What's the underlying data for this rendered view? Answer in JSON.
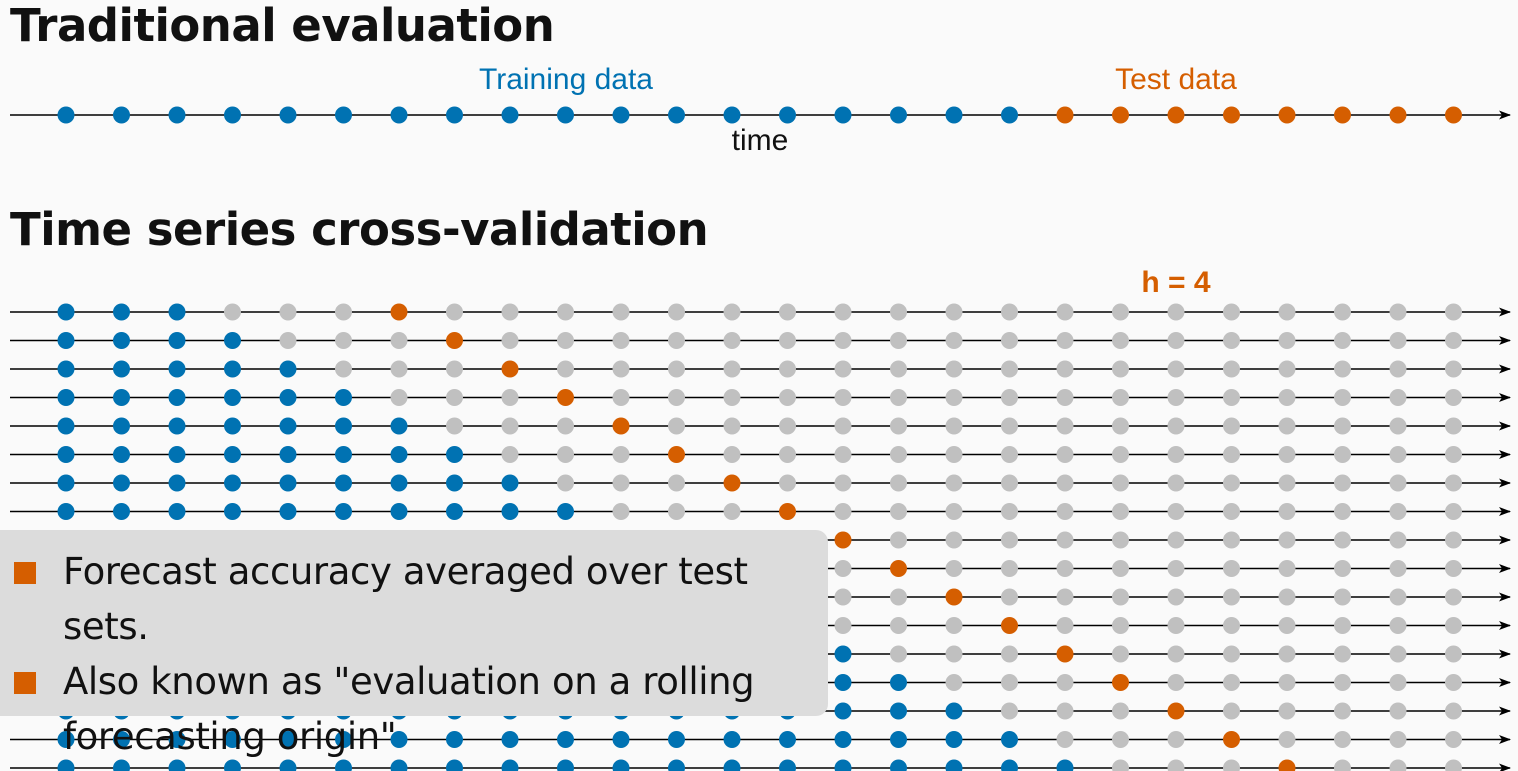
{
  "colors": {
    "train": "#0072b2",
    "test": "#d55e00",
    "unused": "#c0c0c0",
    "axis": "#000000",
    "callout_bg": "#dcdcdc",
    "bullet": "#d55e00"
  },
  "traditional": {
    "heading": "Traditional evaluation",
    "training_label": "Training data",
    "test_label": "Test data",
    "axis_label": "time",
    "n_train": 18,
    "n_test": 8
  },
  "cross_validation": {
    "heading": "Time series cross-validation",
    "horizon_label": "h = 4",
    "n_points": 26,
    "initial_train": 3,
    "horizon": 4,
    "n_rows": 17
  },
  "callout": {
    "bullets": [
      "Forecast accuracy averaged over test sets.",
      "Also known as \"evaluation on a rolling forecasting origin\""
    ],
    "icon": "orange-square-bullet-icon"
  }
}
